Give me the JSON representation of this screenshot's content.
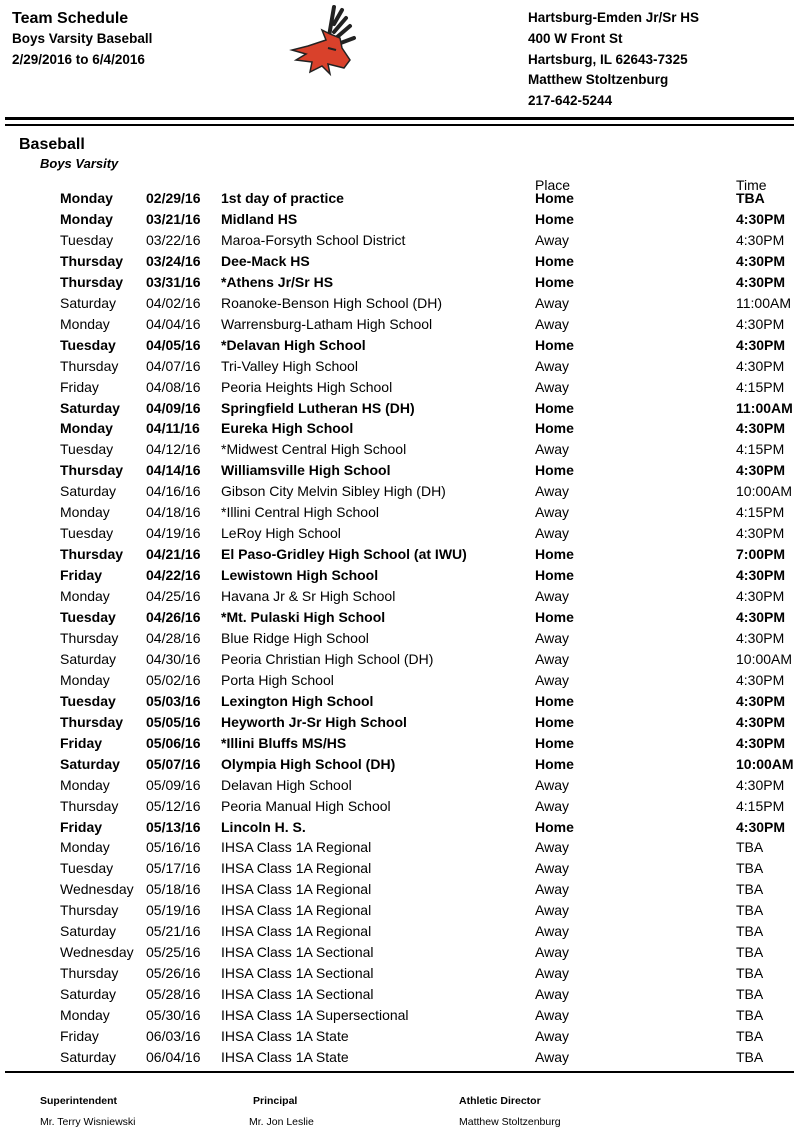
{
  "header": {
    "title": "Team Schedule",
    "subtitle": "Boys Varsity Baseball",
    "date_range": "2/29/2016 to 6/4/2016",
    "school": "Hartsburg-Emden Jr/Sr HS",
    "street": "400 W Front St",
    "city": "Hartsburg, IL  62643-7325",
    "contact": "Matthew Stoltzenburg",
    "phone": "217-642-5244",
    "logo_icon": "deer-mascot-logo",
    "logo_color": "#d9412b"
  },
  "section": {
    "sport": "Baseball",
    "level": "Boys Varsity",
    "place_header": "Place",
    "time_header": "Time"
  },
  "games": [
    {
      "day": "Monday",
      "date": "02/29/16",
      "opponent": "1st day of practice",
      "place": "Home",
      "time": "TBA"
    },
    {
      "day": "Monday",
      "date": "03/21/16",
      "opponent": "Midland HS",
      "place": "Home",
      "time": "4:30PM"
    },
    {
      "day": "Tuesday",
      "date": "03/22/16",
      "opponent": "Maroa-Forsyth School District",
      "place": "Away",
      "time": "4:30PM"
    },
    {
      "day": "Thursday",
      "date": "03/24/16",
      "opponent": "Dee-Mack HS",
      "place": "Home",
      "time": "4:30PM"
    },
    {
      "day": "Thursday",
      "date": "03/31/16",
      "opponent": "*Athens Jr/Sr HS",
      "place": "Home",
      "time": "4:30PM"
    },
    {
      "day": "Saturday",
      "date": "04/02/16",
      "opponent": "Roanoke-Benson High School (DH)",
      "place": "Away",
      "time": "11:00AM"
    },
    {
      "day": "Monday",
      "date": "04/04/16",
      "opponent": "Warrensburg-Latham High School",
      "place": "Away",
      "time": "4:30PM"
    },
    {
      "day": "Tuesday",
      "date": "04/05/16",
      "opponent": "*Delavan High School",
      "place": "Home",
      "time": "4:30PM"
    },
    {
      "day": "Thursday",
      "date": "04/07/16",
      "opponent": "Tri-Valley High School",
      "place": "Away",
      "time": "4:30PM"
    },
    {
      "day": "Friday",
      "date": "04/08/16",
      "opponent": "Peoria Heights High School",
      "place": "Away",
      "time": "4:15PM"
    },
    {
      "day": "Saturday",
      "date": "04/09/16",
      "opponent": "Springfield Lutheran HS (DH)",
      "place": "Home",
      "time": "11:00AM"
    },
    {
      "day": "Monday",
      "date": "04/11/16",
      "opponent": "Eureka High School",
      "place": "Home",
      "time": "4:30PM"
    },
    {
      "day": "Tuesday",
      "date": "04/12/16",
      "opponent": "*Midwest Central High School",
      "place": "Away",
      "time": "4:15PM"
    },
    {
      "day": "Thursday",
      "date": "04/14/16",
      "opponent": "Williamsville High School",
      "place": "Home",
      "time": "4:30PM"
    },
    {
      "day": "Saturday",
      "date": "04/16/16",
      "opponent": "Gibson City Melvin Sibley High (DH)",
      "place": "Away",
      "time": "10:00AM"
    },
    {
      "day": "Monday",
      "date": "04/18/16",
      "opponent": "*Illini Central High School",
      "place": "Away",
      "time": "4:15PM"
    },
    {
      "day": "Tuesday",
      "date": "04/19/16",
      "opponent": "LeRoy High School",
      "place": "Away",
      "time": "4:30PM"
    },
    {
      "day": "Thursday",
      "date": "04/21/16",
      "opponent": "El Paso-Gridley High School (at IWU)",
      "place": "Home",
      "time": "7:00PM"
    },
    {
      "day": "Friday",
      "date": "04/22/16",
      "opponent": "Lewistown High School",
      "place": "Home",
      "time": "4:30PM"
    },
    {
      "day": "Monday",
      "date": "04/25/16",
      "opponent": "Havana Jr & Sr High School",
      "place": "Away",
      "time": "4:30PM"
    },
    {
      "day": "Tuesday",
      "date": "04/26/16",
      "opponent": "*Mt. Pulaski High School",
      "place": "Home",
      "time": "4:30PM"
    },
    {
      "day": "Thursday",
      "date": "04/28/16",
      "opponent": "Blue Ridge High School",
      "place": "Away",
      "time": "4:30PM"
    },
    {
      "day": "Saturday",
      "date": "04/30/16",
      "opponent": "Peoria Christian High School (DH)",
      "place": "Away",
      "time": "10:00AM"
    },
    {
      "day": "Monday",
      "date": "05/02/16",
      "opponent": "Porta High School",
      "place": "Away",
      "time": "4:30PM"
    },
    {
      "day": "Tuesday",
      "date": "05/03/16",
      "opponent": "Lexington High School",
      "place": "Home",
      "time": "4:30PM"
    },
    {
      "day": "Thursday",
      "date": "05/05/16",
      "opponent": "Heyworth Jr-Sr High School",
      "place": "Home",
      "time": "4:30PM"
    },
    {
      "day": "Friday",
      "date": "05/06/16",
      "opponent": "*Illini Bluffs MS/HS",
      "place": "Home",
      "time": "4:30PM"
    },
    {
      "day": "Saturday",
      "date": "05/07/16",
      "opponent": "Olympia High School (DH)",
      "place": "Home",
      "time": "10:00AM"
    },
    {
      "day": "Monday",
      "date": "05/09/16",
      "opponent": "Delavan High School",
      "place": "Away",
      "time": "4:30PM"
    },
    {
      "day": "Thursday",
      "date": "05/12/16",
      "opponent": "Peoria Manual High School",
      "place": "Away",
      "time": "4:15PM"
    },
    {
      "day": "Friday",
      "date": "05/13/16",
      "opponent": "Lincoln H. S.",
      "place": "Home",
      "time": "4:30PM"
    },
    {
      "day": "Monday",
      "date": "05/16/16",
      "opponent": "IHSA Class 1A Regional",
      "place": "Away",
      "time": "TBA"
    },
    {
      "day": "Tuesday",
      "date": "05/17/16",
      "opponent": "IHSA Class 1A Regional",
      "place": "Away",
      "time": "TBA"
    },
    {
      "day": "Wednesday",
      "date": "05/18/16",
      "opponent": "IHSA Class 1A Regional",
      "place": "Away",
      "time": "TBA"
    },
    {
      "day": "Thursday",
      "date": "05/19/16",
      "opponent": "IHSA Class 1A Regional",
      "place": "Away",
      "time": "TBA"
    },
    {
      "day": "Saturday",
      "date": "05/21/16",
      "opponent": "IHSA Class 1A Regional",
      "place": "Away",
      "time": "TBA"
    },
    {
      "day": "Wednesday",
      "date": "05/25/16",
      "opponent": "IHSA Class 1A Sectional",
      "place": "Away",
      "time": "TBA"
    },
    {
      "day": "Thursday",
      "date": "05/26/16",
      "opponent": "IHSA Class 1A Sectional",
      "place": "Away",
      "time": "TBA"
    },
    {
      "day": "Saturday",
      "date": "05/28/16",
      "opponent": "IHSA Class 1A Sectional",
      "place": "Away",
      "time": "TBA"
    },
    {
      "day": "Monday",
      "date": "05/30/16",
      "opponent": "IHSA Class 1A Supersectional",
      "place": "Away",
      "time": "TBA"
    },
    {
      "day": "Friday",
      "date": "06/03/16",
      "opponent": "IHSA Class 1A State",
      "place": "Away",
      "time": "TBA"
    },
    {
      "day": "Saturday",
      "date": "06/04/16",
      "opponent": "IHSA Class 1A State",
      "place": "Away",
      "time": "TBA"
    }
  ],
  "footer": [
    {
      "role": "Superintendent",
      "name": "Mr. Terry Wisniewski"
    },
    {
      "role": "Principal",
      "name": "Mr. Jon Leslie"
    },
    {
      "role": "Athletic Director",
      "name": "Matthew Stoltzenburg"
    }
  ]
}
